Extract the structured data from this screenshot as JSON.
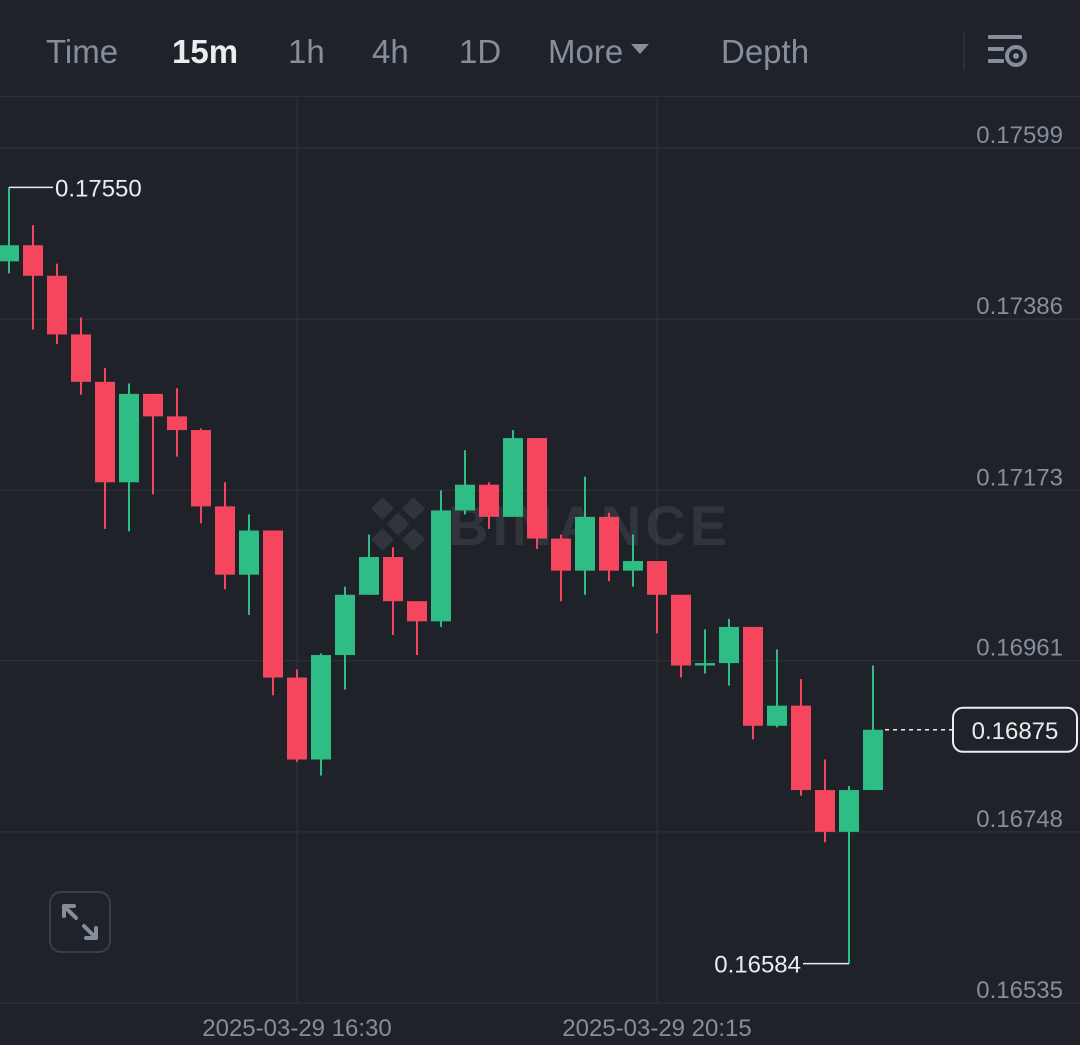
{
  "toolbar": {
    "tabs": [
      {
        "label": "Time",
        "active": false
      },
      {
        "label": "15m",
        "active": true
      },
      {
        "label": "1h",
        "active": false
      },
      {
        "label": "4h",
        "active": false
      },
      {
        "label": "1D",
        "active": false
      },
      {
        "label": "More",
        "active": false
      },
      {
        "label": "Depth",
        "active": false
      }
    ],
    "settings_icon": "chart-settings-icon"
  },
  "watermark": "BINANCE",
  "expand_icon": "expand-arrows-icon",
  "colors": {
    "background": "#1f2229",
    "up": "#2ebd85",
    "down": "#f6465d",
    "grid": "#2b2f36",
    "axis_text": "#848e9c"
  },
  "chart_data": {
    "type": "candlestick",
    "interval": "15m",
    "ylim": [
      0.16535,
      0.17599
    ],
    "y_ticks": [
      "0.17599",
      "0.17386",
      "0.17173",
      "0.16961",
      "0.16748",
      "0.16535"
    ],
    "x_ticks": [
      {
        "label": "2025-03-29 16:30",
        "index": 12
      },
      {
        "label": "2025-03-29 20:15",
        "index": 27
      }
    ],
    "high_label": "0.17550",
    "low_label": "0.16584",
    "current_price": "0.16875",
    "candles": [
      {
        "o": 0.17458,
        "h": 0.1755,
        "l": 0.17443,
        "c": 0.17478
      },
      {
        "o": 0.17478,
        "h": 0.17503,
        "l": 0.17373,
        "c": 0.1744
      },
      {
        "o": 0.1744,
        "h": 0.17455,
        "l": 0.17355,
        "c": 0.17367
      },
      {
        "o": 0.17367,
        "h": 0.17388,
        "l": 0.17292,
        "c": 0.17308
      },
      {
        "o": 0.17308,
        "h": 0.17325,
        "l": 0.17125,
        "c": 0.17183
      },
      {
        "o": 0.17183,
        "h": 0.17306,
        "l": 0.17122,
        "c": 0.17293
      },
      {
        "o": 0.17293,
        "h": 0.17293,
        "l": 0.17168,
        "c": 0.17265
      },
      {
        "o": 0.17265,
        "h": 0.173,
        "l": 0.17215,
        "c": 0.17248
      },
      {
        "o": 0.17248,
        "h": 0.1725,
        "l": 0.17132,
        "c": 0.17153
      },
      {
        "o": 0.17153,
        "h": 0.17183,
        "l": 0.1705,
        "c": 0.17068
      },
      {
        "o": 0.17068,
        "h": 0.17143,
        "l": 0.17018,
        "c": 0.17123
      },
      {
        "o": 0.17123,
        "h": 0.17123,
        "l": 0.16918,
        "c": 0.1694
      },
      {
        "o": 0.1694,
        "h": 0.1695,
        "l": 0.16835,
        "c": 0.16838
      },
      {
        "o": 0.16838,
        "h": 0.1697,
        "l": 0.16818,
        "c": 0.16968
      },
      {
        "o": 0.16968,
        "h": 0.17053,
        "l": 0.16925,
        "c": 0.17043
      },
      {
        "o": 0.17043,
        "h": 0.17118,
        "l": 0.17043,
        "c": 0.1709
      },
      {
        "o": 0.1709,
        "h": 0.17102,
        "l": 0.16993,
        "c": 0.17035
      },
      {
        "o": 0.17035,
        "h": 0.17035,
        "l": 0.16968,
        "c": 0.1701
      },
      {
        "o": 0.1701,
        "h": 0.17173,
        "l": 0.17003,
        "c": 0.17148
      },
      {
        "o": 0.17148,
        "h": 0.17223,
        "l": 0.17143,
        "c": 0.1718
      },
      {
        "o": 0.1718,
        "h": 0.17183,
        "l": 0.17125,
        "c": 0.1714
      },
      {
        "o": 0.1714,
        "h": 0.17248,
        "l": 0.1714,
        "c": 0.17238
      },
      {
        "o": 0.17238,
        "h": 0.17238,
        "l": 0.171,
        "c": 0.17113
      },
      {
        "o": 0.17113,
        "h": 0.17118,
        "l": 0.17035,
        "c": 0.17073
      },
      {
        "o": 0.17073,
        "h": 0.1719,
        "l": 0.17043,
        "c": 0.1714
      },
      {
        "o": 0.1714,
        "h": 0.17145,
        "l": 0.1706,
        "c": 0.17073
      },
      {
        "o": 0.17073,
        "h": 0.17118,
        "l": 0.17053,
        "c": 0.17085
      },
      {
        "o": 0.17085,
        "h": 0.17085,
        "l": 0.16995,
        "c": 0.17043
      },
      {
        "o": 0.17043,
        "h": 0.17043,
        "l": 0.1694,
        "c": 0.16955
      },
      {
        "o": 0.16955,
        "h": 0.17,
        "l": 0.16945,
        "c": 0.16958
      },
      {
        "o": 0.16958,
        "h": 0.17013,
        "l": 0.1693,
        "c": 0.17003
      },
      {
        "o": 0.17003,
        "h": 0.17003,
        "l": 0.16863,
        "c": 0.1688
      },
      {
        "o": 0.1688,
        "h": 0.16975,
        "l": 0.16878,
        "c": 0.16905
      },
      {
        "o": 0.16905,
        "h": 0.16938,
        "l": 0.16793,
        "c": 0.168
      },
      {
        "o": 0.168,
        "h": 0.16838,
        "l": 0.16735,
        "c": 0.16748
      },
      {
        "o": 0.16748,
        "h": 0.16805,
        "l": 0.16584,
        "c": 0.168
      },
      {
        "o": 0.168,
        "h": 0.16955,
        "l": 0.168,
        "c": 0.16875
      }
    ]
  }
}
